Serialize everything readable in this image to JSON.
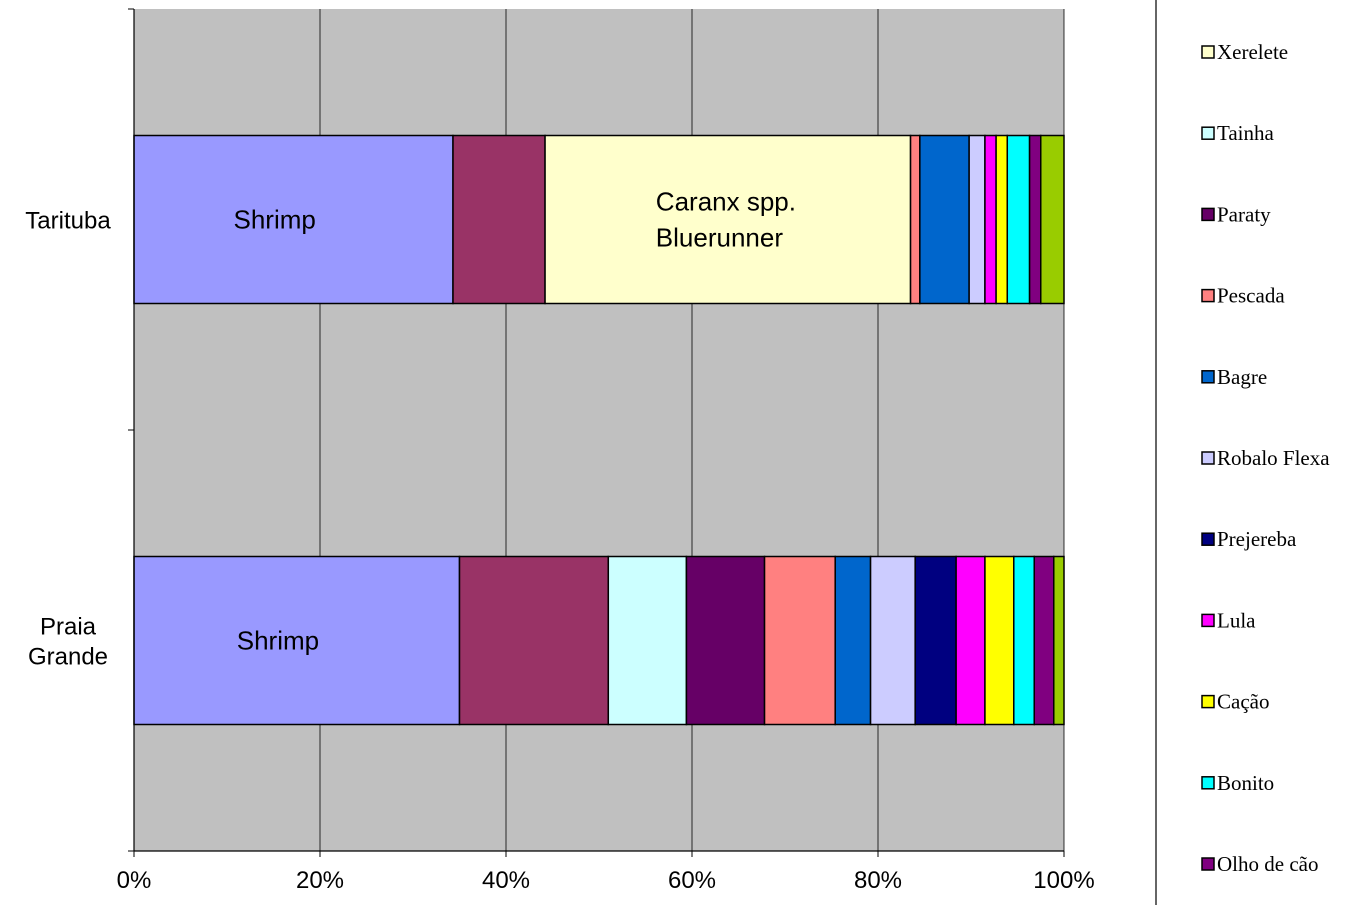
{
  "chart_data": {
    "type": "bar",
    "orientation": "horizontal",
    "stacked": "percent",
    "categories": [
      "Tarituba",
      "Praia Grande"
    ],
    "xlim": [
      0,
      100
    ],
    "xticks": [
      "0%",
      "20%",
      "40%",
      "60%",
      "80%",
      "100%"
    ],
    "grid": true,
    "legend_position": "right",
    "segments": [
      {
        "category": "Tarituba",
        "color": "#9999FF",
        "value": 34.3,
        "label": [
          "Shrimp"
        ]
      },
      {
        "category": "Tarituba",
        "color": "#993366",
        "value": 9.9,
        "label": []
      },
      {
        "category": "Tarituba",
        "color": "#FFFFCC",
        "value": 39.3,
        "label": [
          "Caranx spp.",
          "Bluerunner"
        ]
      },
      {
        "category": "Tarituba",
        "color": "#FF8080",
        "value": 1.0,
        "label": []
      },
      {
        "category": "Tarituba",
        "color": "#0066CC",
        "value": 5.3,
        "label": []
      },
      {
        "category": "Tarituba",
        "color": "#CCCCFF",
        "value": 1.7,
        "label": []
      },
      {
        "category": "Tarituba",
        "color": "#FF00FF",
        "value": 1.2,
        "label": []
      },
      {
        "category": "Tarituba",
        "color": "#FFFF00",
        "value": 1.2,
        "label": []
      },
      {
        "category": "Tarituba",
        "color": "#00FFFF",
        "value": 2.4,
        "label": []
      },
      {
        "category": "Tarituba",
        "color": "#800080",
        "value": 1.2,
        "label": []
      },
      {
        "category": "Tarituba",
        "color": "#99CC00",
        "value": 2.5,
        "label": []
      },
      {
        "category": "Praia Grande",
        "color": "#9999FF",
        "value": 35.0,
        "label": [
          "Shrimp"
        ]
      },
      {
        "category": "Praia Grande",
        "color": "#993366",
        "value": 16.0,
        "label": []
      },
      {
        "category": "Praia Grande",
        "color": "#CCFFFF",
        "value": 8.4,
        "label": []
      },
      {
        "category": "Praia Grande",
        "color": "#660066",
        "value": 8.4,
        "label": []
      },
      {
        "category": "Praia Grande",
        "color": "#FF8080",
        "value": 7.6,
        "label": []
      },
      {
        "category": "Praia Grande",
        "color": "#0066CC",
        "value": 3.8,
        "label": []
      },
      {
        "category": "Praia Grande",
        "color": "#CCCCFF",
        "value": 4.8,
        "label": []
      },
      {
        "category": "Praia Grande",
        "color": "#000080",
        "value": 4.4,
        "label": []
      },
      {
        "category": "Praia Grande",
        "color": "#FF00FF",
        "value": 3.1,
        "label": []
      },
      {
        "category": "Praia Grande",
        "color": "#FFFF00",
        "value": 3.1,
        "label": []
      },
      {
        "category": "Praia Grande",
        "color": "#00FFFF",
        "value": 2.2,
        "label": []
      },
      {
        "category": "Praia Grande",
        "color": "#800080",
        "value": 2.1,
        "label": []
      },
      {
        "category": "Praia Grande",
        "color": "#99CC00",
        "value": 1.1,
        "label": []
      }
    ],
    "legend": [
      {
        "name": "Xerelete",
        "color": "#FFFFCC"
      },
      {
        "name": "Tainha",
        "color": "#CCFFFF"
      },
      {
        "name": "Paraty",
        "color": "#660066"
      },
      {
        "name": "Pescada",
        "color": "#FF8080"
      },
      {
        "name": "Bagre",
        "color": "#0066CC"
      },
      {
        "name": "Robalo Flexa",
        "color": "#CCCCFF"
      },
      {
        "name": "Prejereba",
        "color": "#000080"
      },
      {
        "name": "Lula",
        "color": "#FF00FF"
      },
      {
        "name": "Cação",
        "color": "#FFFF00"
      },
      {
        "name": "Bonito",
        "color": "#00FFFF"
      },
      {
        "name": "Olho de cão",
        "color": "#800080"
      }
    ]
  }
}
